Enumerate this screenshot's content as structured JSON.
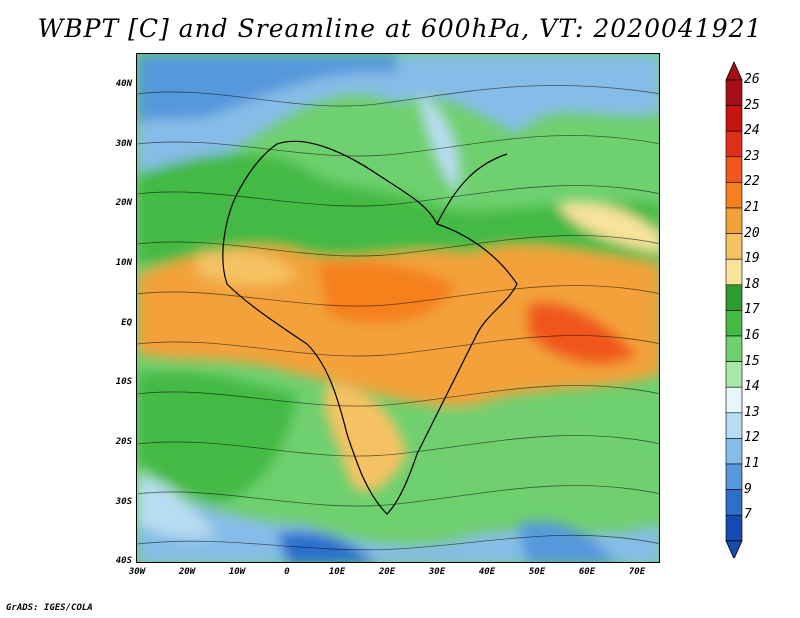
{
  "title": "WBPT [C] and Sreamline at 600hPa, VT: 2020041921",
  "map": {
    "lat_labels": [
      "40N",
      "30N",
      "20N",
      "10N",
      "EQ",
      "10S",
      "20S",
      "30S",
      "40S"
    ],
    "lon_labels": [
      "30W",
      "20W",
      "10W",
      "0",
      "10E",
      "20E",
      "30E",
      "40E",
      "50E",
      "60E",
      "70E"
    ]
  },
  "colorbar": {
    "labels": [
      "26",
      "25",
      "24",
      "23",
      "22",
      "21",
      "20",
      "19",
      "18",
      "17",
      "16",
      "15",
      "14",
      "13",
      "12",
      "11",
      "9",
      "7"
    ],
    "colors": [
      "#a50f15",
      "#c8140f",
      "#e0301a",
      "#f0561e",
      "#f5801e",
      "#f3a23a",
      "#f5c264",
      "#f8e39a",
      "#2d9b2d",
      "#45b945",
      "#6fd06f",
      "#a8e8a8",
      "#e6f7fb",
      "#b8dcf2",
      "#86bde8",
      "#5798dc",
      "#2c70cc",
      "#154ab0"
    ]
  },
  "credit": "GrADS: IGES/COLA"
}
